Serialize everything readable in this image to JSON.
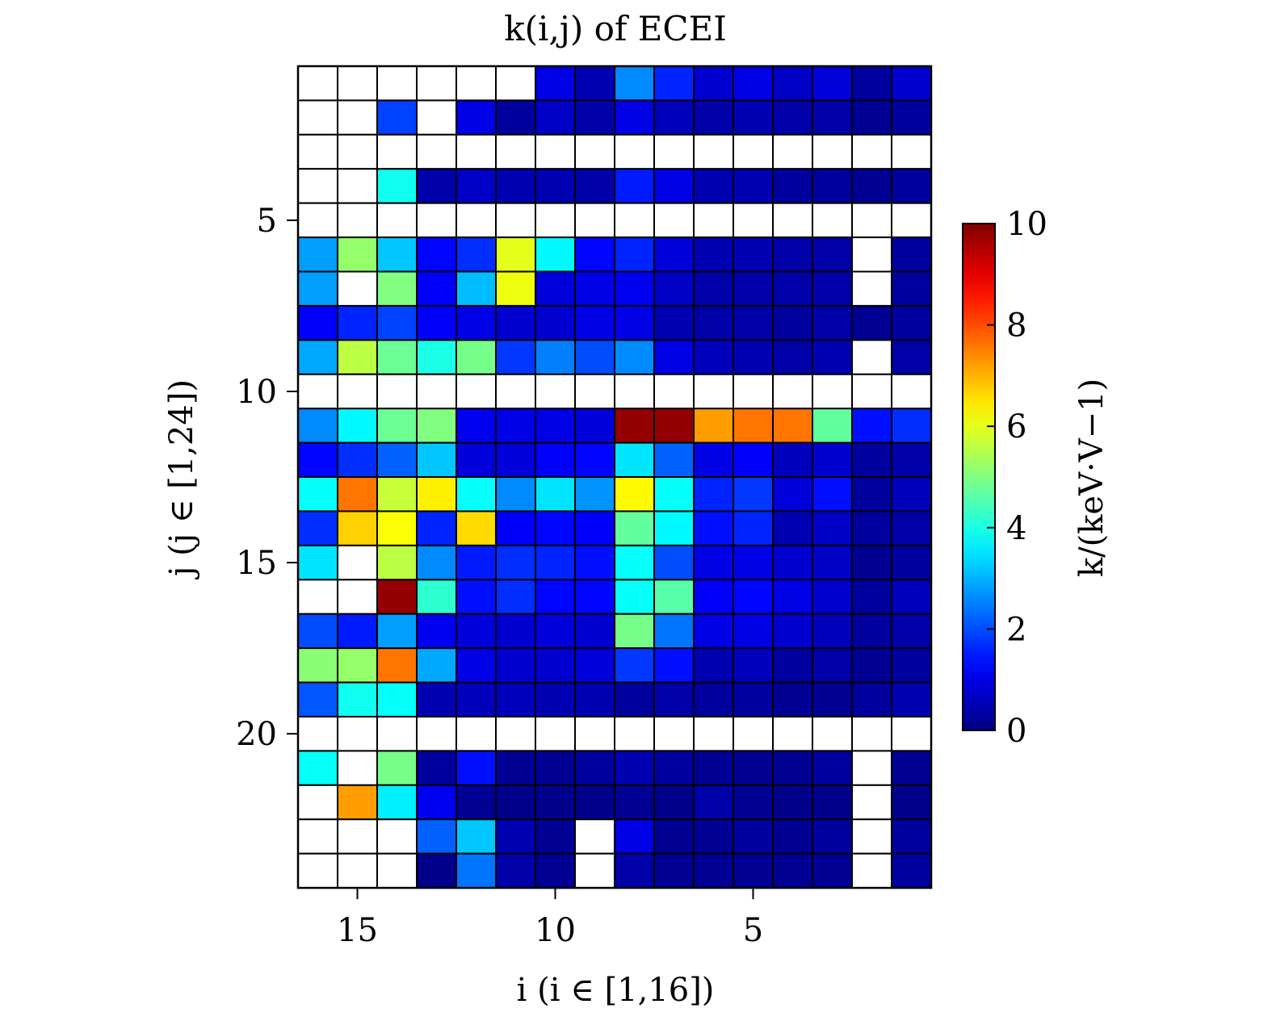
{
  "chart_data": {
    "type": "heatmap",
    "title": "k(i,j) of ECEI",
    "xlabel": "i (i ∈ [1,16])",
    "ylabel": "j (j ∈ [1,24])",
    "colorbar_label": "k/(keV·V−1)",
    "x_direction": "reversed",
    "x_range": [
      1,
      16
    ],
    "y_range": [
      1,
      24
    ],
    "x_ticks": [
      15,
      10,
      5
    ],
    "y_ticks": [
      5,
      10,
      15,
      20
    ],
    "colorbar_ticks": [
      0,
      2,
      4,
      6,
      8,
      10
    ],
    "zlim": [
      0,
      10
    ],
    "colormap": "jet",
    "grid": true,
    "missing_color": "#ffffff",
    "x_columns_left_to_right": [
      16,
      15,
      14,
      13,
      12,
      11,
      10,
      9,
      8,
      7,
      6,
      5,
      4,
      3,
      2,
      1
    ],
    "values": [
      [
        null,
        null,
        null,
        null,
        null,
        null,
        1.0,
        0.5,
        2.6,
        1.6,
        0.8,
        1.0,
        0.7,
        0.9,
        0.3,
        0.8
      ],
      [
        null,
        null,
        1.9,
        null,
        1.0,
        0.3,
        0.7,
        0.4,
        1.0,
        0.6,
        0.4,
        0.5,
        0.4,
        0.4,
        0.2,
        0.3
      ],
      [
        null,
        null,
        null,
        null,
        null,
        null,
        null,
        null,
        null,
        null,
        null,
        null,
        null,
        null,
        null,
        null
      ],
      [
        null,
        null,
        3.9,
        0.4,
        0.7,
        0.5,
        0.5,
        0.4,
        1.5,
        1.0,
        0.5,
        0.5,
        0.3,
        0.3,
        0.2,
        0.3
      ],
      [
        null,
        null,
        null,
        null,
        null,
        null,
        null,
        null,
        null,
        null,
        null,
        null,
        null,
        null,
        null,
        null
      ],
      [
        2.8,
        5.2,
        3.2,
        1.3,
        1.7,
        6.0,
        3.7,
        1.3,
        1.6,
        0.9,
        0.5,
        0.5,
        0.4,
        0.4,
        null,
        0.3
      ],
      [
        2.8,
        null,
        5.0,
        1.2,
        3.1,
        6.1,
        0.9,
        1.0,
        1.1,
        0.7,
        0.4,
        0.4,
        0.4,
        0.4,
        null,
        0.3
      ],
      [
        1.2,
        1.6,
        1.9,
        1.2,
        1.0,
        0.8,
        0.8,
        1.0,
        1.0,
        0.5,
        0.4,
        0.4,
        0.3,
        0.4,
        0.2,
        0.3
      ],
      [
        2.9,
        5.6,
        4.8,
        4.0,
        4.9,
        1.8,
        2.5,
        2.0,
        2.6,
        1.0,
        0.6,
        0.5,
        0.4,
        0.5,
        null,
        0.4
      ],
      [
        null,
        null,
        null,
        null,
        null,
        null,
        null,
        null,
        null,
        null,
        null,
        null,
        null,
        null,
        null,
        null
      ],
      [
        2.6,
        3.7,
        4.8,
        5.0,
        1.1,
        1.0,
        1.0,
        0.9,
        9.8,
        9.8,
        7.2,
        7.6,
        7.6,
        4.7,
        1.4,
        1.7
      ],
      [
        1.3,
        1.7,
        2.2,
        3.2,
        0.9,
        0.9,
        1.2,
        1.3,
        3.5,
        2.2,
        1.0,
        1.2,
        0.6,
        0.8,
        0.3,
        0.4
      ],
      [
        3.8,
        7.6,
        5.7,
        6.4,
        3.8,
        2.6,
        3.5,
        2.7,
        6.3,
        3.8,
        1.6,
        1.8,
        0.9,
        1.4,
        0.3,
        0.6
      ],
      [
        1.7,
        6.7,
        6.2,
        1.6,
        6.6,
        1.2,
        1.3,
        1.2,
        4.7,
        3.7,
        1.4,
        1.6,
        0.5,
        0.7,
        0.3,
        0.4
      ],
      [
        3.5,
        null,
        5.6,
        2.6,
        1.5,
        1.7,
        1.6,
        1.4,
        3.8,
        2.0,
        1.0,
        1.0,
        0.8,
        0.7,
        0.2,
        0.3
      ],
      [
        null,
        null,
        9.8,
        4.2,
        1.4,
        1.7,
        1.3,
        1.3,
        3.8,
        4.6,
        1.2,
        1.3,
        1.0,
        0.8,
        0.3,
        0.6
      ],
      [
        2.0,
        1.5,
        2.8,
        1.1,
        0.9,
        0.8,
        0.9,
        0.8,
        4.9,
        2.4,
        1.0,
        1.0,
        0.8,
        0.6,
        0.3,
        0.4
      ],
      [
        5.1,
        5.2,
        7.6,
        2.9,
        1.0,
        0.8,
        0.8,
        0.9,
        1.8,
        1.4,
        0.5,
        0.6,
        0.3,
        0.4,
        0.2,
        0.3
      ],
      [
        2.1,
        3.9,
        3.8,
        0.5,
        0.6,
        0.6,
        0.5,
        0.5,
        0.3,
        0.4,
        0.3,
        0.3,
        0.2,
        0.2,
        0.3,
        0.5
      ],
      [
        null,
        null,
        null,
        null,
        null,
        null,
        null,
        null,
        null,
        null,
        null,
        null,
        null,
        null,
        null,
        null
      ],
      [
        3.8,
        null,
        4.9,
        0.3,
        1.4,
        0.2,
        0.2,
        0.3,
        0.5,
        0.3,
        0.2,
        0.2,
        0.2,
        0.3,
        null,
        0.2
      ],
      [
        null,
        7.2,
        3.6,
        1.1,
        0.2,
        0.1,
        0.1,
        0.1,
        0.2,
        0.1,
        0.4,
        0.2,
        0.1,
        0.1,
        null,
        0.1
      ],
      [
        null,
        null,
        null,
        2.2,
        3.2,
        0.5,
        0.2,
        null,
        1.0,
        0.2,
        0.2,
        0.3,
        0.2,
        0.3,
        null,
        0.3
      ],
      [
        null,
        null,
        null,
        0.1,
        2.4,
        0.4,
        0.2,
        null,
        0.4,
        0.2,
        0.2,
        0.2,
        0.2,
        0.2,
        null,
        0.3
      ]
    ]
  }
}
